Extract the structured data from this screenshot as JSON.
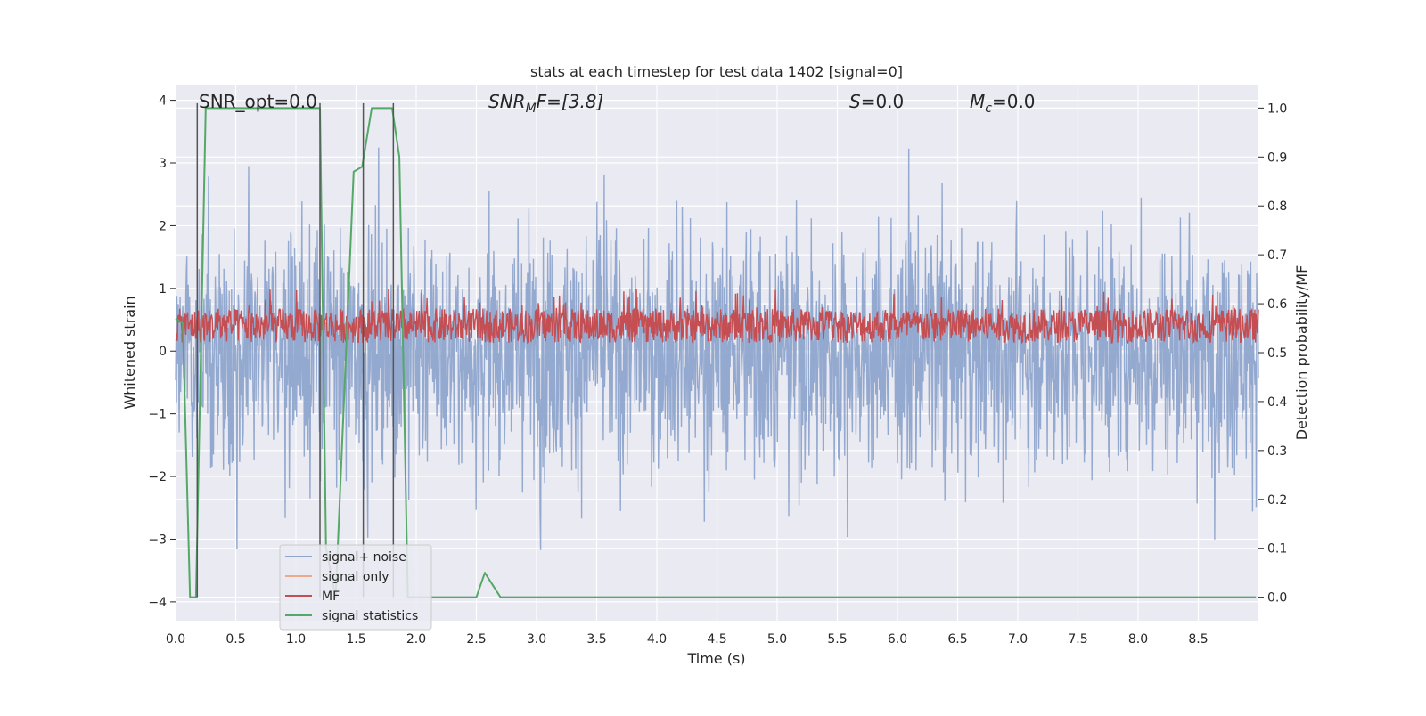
{
  "chart_data": {
    "type": "line",
    "title": "stats at each timestep for test data 1402 [signal=0]",
    "xlabel": "Time (s)",
    "ylabel": "Whitened strain",
    "y2label": "Detection probability/MF",
    "xlim": [
      0,
      9.0
    ],
    "ylim": [
      -4.3,
      4.25
    ],
    "y2lim": [
      -0.048,
      1.048
    ],
    "xticks": [
      0.0,
      0.5,
      1.0,
      1.5,
      2.0,
      2.5,
      3.0,
      3.5,
      4.0,
      4.5,
      5.0,
      5.5,
      6.0,
      6.5,
      7.0,
      7.5,
      8.0,
      8.5
    ],
    "xtick_labels": [
      "0.0",
      "0.5",
      "1.0",
      "1.5",
      "2.0",
      "2.5",
      "3.0",
      "3.5",
      "4.0",
      "4.5",
      "5.0",
      "5.5",
      "6.0",
      "6.5",
      "7.0",
      "7.5",
      "8.0",
      "8.5"
    ],
    "yticks": [
      -4,
      -3,
      -2,
      -1,
      0,
      1,
      2,
      3,
      4
    ],
    "ytick_labels": [
      "−4",
      "−3",
      "−2",
      "−1",
      "0",
      "1",
      "2",
      "3",
      "4"
    ],
    "y2ticks": [
      0.0,
      0.1,
      0.2,
      0.3,
      0.4,
      0.5,
      0.6,
      0.7,
      0.8,
      0.9,
      1.0
    ],
    "y2tick_labels": [
      "0.0",
      "0.1",
      "0.2",
      "0.3",
      "0.4",
      "0.5",
      "0.6",
      "0.7",
      "0.8",
      "0.9",
      "1.0"
    ],
    "grid": true,
    "legend": {
      "placement": "lower-left",
      "entries": [
        {
          "label": "signal+ noise",
          "color": "#8fa5cc"
        },
        {
          "label": "signal only",
          "color": "#eea98c"
        },
        {
          "label": "MF",
          "color": "#c44e52"
        },
        {
          "label": "signal statistics",
          "color": "#55a868"
        }
      ]
    },
    "annotations": [
      {
        "id": "snr-opt",
        "text": "SNR_opt=0.0",
        "x": 0.2
      },
      {
        "id": "snr-mf",
        "base": "SNR",
        "sub": "M",
        "rest": "F=[3.8]",
        "x": 2.6
      },
      {
        "id": "s-stat",
        "base": "S",
        "rest": "=0.0",
        "x": 5.6
      },
      {
        "id": "mc-stat",
        "base": "M",
        "sub": "c",
        "rest": "=0.0",
        "x": 6.6
      }
    ],
    "series": [
      {
        "name": "signal+ noise",
        "color": "#8fa5cc",
        "axis": "left",
        "description_values": {
          "x_range": [
            0.0,
            9.0
          ],
          "typical_range": [
            -2.0,
            2.5
          ],
          "extreme_min": -4.0,
          "extreme_max": 3.85
        }
      },
      {
        "name": "MF",
        "color": "#c44e52",
        "axis": "right",
        "description_values": {
          "x_range": [
            0.0,
            9.0
          ],
          "typical_range": [
            0.52,
            0.6
          ],
          "max": 0.63,
          "min": 0.5
        }
      },
      {
        "name": "signal statistics",
        "color": "#55a868",
        "axis": "right",
        "x": [
          0.0,
          0.06,
          0.12,
          0.17,
          0.25,
          0.3,
          1.2,
          1.25,
          1.33,
          1.48,
          1.55,
          1.63,
          1.8,
          1.86,
          1.93,
          1.98,
          2.5,
          2.57,
          2.7,
          4.48,
          4.52,
          8.98
        ],
        "values": [
          0.57,
          0.56,
          0.0,
          0.0,
          1.0,
          1.0,
          1.0,
          0.1,
          0.0,
          0.87,
          0.88,
          1.0,
          1.0,
          0.9,
          0.0,
          0.0,
          0.0,
          0.05,
          0.0,
          0.0,
          0.0,
          0.0
        ]
      }
    ],
    "vertical_lines": {
      "color": "#555555",
      "x": [
        0.18,
        1.2,
        1.56,
        1.81
      ]
    }
  }
}
